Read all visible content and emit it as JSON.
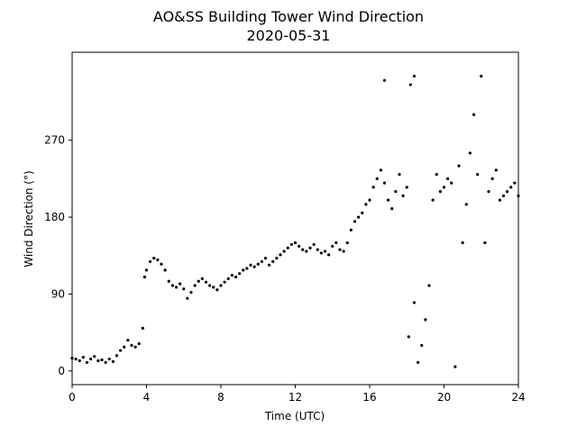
{
  "chart_data": {
    "type": "scatter",
    "title": "AO&SS Building Tower Wind Direction",
    "subtitle": "2020-05-31",
    "x_label": "Time (UTC)",
    "y_label": "Wind Direction (°)",
    "color": "#000000",
    "xlim": [
      0,
      24
    ],
    "xticks": [
      0,
      4,
      8,
      12,
      16,
      20,
      24
    ],
    "ylim": [
      -16,
      373
    ],
    "yticks": [
      0,
      90,
      180,
      270
    ],
    "x": [
      0.0,
      0.2,
      0.4,
      0.6,
      0.8,
      1.0,
      1.2,
      1.4,
      1.6,
      1.8,
      2.0,
      2.2,
      2.4,
      2.6,
      2.8,
      3.0,
      3.2,
      3.4,
      3.6,
      3.8,
      3.9,
      4.0,
      4.2,
      4.4,
      4.6,
      4.8,
      5.0,
      5.2,
      5.4,
      5.6,
      5.8,
      6.0,
      6.2,
      6.4,
      6.6,
      6.8,
      7.0,
      7.2,
      7.4,
      7.6,
      7.8,
      8.0,
      8.2,
      8.4,
      8.6,
      8.8,
      9.0,
      9.2,
      9.4,
      9.6,
      9.8,
      10.0,
      10.2,
      10.4,
      10.6,
      10.8,
      11.0,
      11.2,
      11.4,
      11.6,
      11.8,
      12.0,
      12.2,
      12.4,
      12.6,
      12.8,
      13.0,
      13.2,
      13.4,
      13.6,
      13.8,
      14.0,
      14.2,
      14.4,
      14.6,
      14.8,
      15.0,
      15.2,
      15.4,
      15.6,
      15.8,
      16.0,
      16.2,
      16.4,
      16.6,
      16.8,
      16.8,
      17.0,
      17.2,
      17.4,
      17.6,
      17.8,
      18.0,
      18.1,
      18.2,
      18.4,
      18.4,
      18.6,
      18.8,
      19.0,
      19.2,
      19.4,
      19.6,
      19.8,
      20.0,
      20.2,
      20.4,
      20.6,
      20.8,
      21.0,
      21.2,
      21.4,
      21.6,
      21.8,
      22.0,
      22.2,
      22.4,
      22.6,
      22.8,
      23.0,
      23.2,
      23.4,
      23.6,
      23.8,
      24.0
    ],
    "values": [
      15,
      14,
      12,
      16,
      10,
      14,
      17,
      12,
      13,
      10,
      14,
      11,
      18,
      24,
      28,
      36,
      30,
      28,
      32,
      50,
      110,
      118,
      128,
      132,
      130,
      125,
      118,
      105,
      100,
      98,
      102,
      96,
      85,
      92,
      100,
      105,
      108,
      104,
      100,
      98,
      95,
      100,
      104,
      108,
      112,
      110,
      114,
      118,
      120,
      124,
      122,
      125,
      128,
      132,
      124,
      128,
      132,
      136,
      140,
      144,
      148,
      150,
      146,
      142,
      140,
      144,
      148,
      142,
      138,
      140,
      136,
      146,
      150,
      142,
      140,
      150,
      165,
      175,
      180,
      185,
      195,
      200,
      215,
      225,
      235,
      220,
      340,
      200,
      190,
      210,
      230,
      205,
      215,
      40,
      335,
      345,
      80,
      10,
      30,
      60,
      100,
      200,
      230,
      210,
      215,
      225,
      220,
      5,
      240,
      150,
      195,
      255,
      300,
      230,
      345,
      150,
      210,
      225,
      235,
      200,
      205,
      210,
      215,
      220,
      205
    ]
  }
}
